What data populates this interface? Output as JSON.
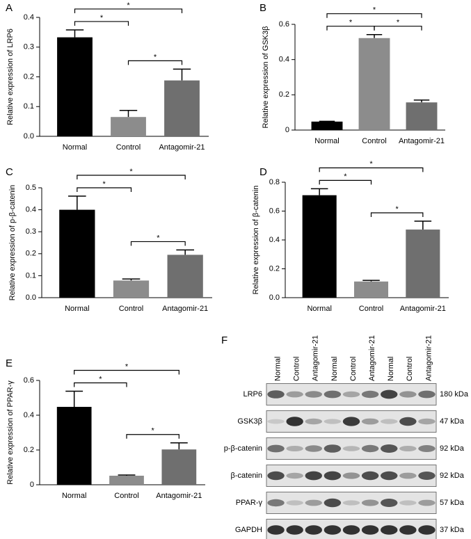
{
  "chart_data": [
    {
      "type": "bar",
      "letter": "A",
      "ylabel": "Relative expression of LRP6",
      "categories": [
        "Normal",
        "Control",
        "Antagomir-21"
      ],
      "values": [
        0.333,
        0.065,
        0.188
      ],
      "errors": [
        0.025,
        0.022,
        0.038
      ],
      "colors": [
        "#000000",
        "#8c8c8c",
        "#6f6f6f"
      ],
      "ylim": [
        0,
        0.4
      ],
      "yticks": [
        {
          "value": 0,
          "label": "0.0"
        },
        0.1,
        0.2,
        0.3,
        0.4
      ],
      "comparisons": [
        {
          "groups": [
            "Normal",
            "Control"
          ],
          "label": "*"
        },
        {
          "groups": [
            "Control",
            "Antagomir-21"
          ],
          "label": "*"
        },
        {
          "groups": [
            "Normal",
            "Antagomir-21"
          ],
          "label": "*"
        }
      ]
    },
    {
      "type": "bar",
      "letter": "B",
      "ylabel": "Relative expression of GSK3β",
      "categories": [
        "Normal",
        "Control",
        "Antagomir-21"
      ],
      "values": [
        0.048,
        0.522,
        0.157
      ],
      "errors": [
        0.002,
        0.02,
        0.013
      ],
      "colors": [
        "#000000",
        "#8c8c8c",
        "#6f6f6f"
      ],
      "ylim": [
        0,
        0.6
      ],
      "yticks": [
        0,
        0.2,
        0.4,
        0.6
      ],
      "comparisons": [
        {
          "groups": [
            "Normal",
            "Control"
          ],
          "label": "*"
        },
        {
          "groups": [
            "Control",
            "Antagomir-21"
          ],
          "label": "*"
        },
        {
          "groups": [
            "Normal",
            "Antagomir-21"
          ],
          "label": "*"
        }
      ]
    },
    {
      "type": "bar",
      "letter": "C",
      "ylabel": "Relative expression of p-β-catenin",
      "categories": [
        "Normal",
        "Control",
        "Antagomir-21"
      ],
      "values": [
        0.4,
        0.078,
        0.195
      ],
      "errors": [
        0.062,
        0.007,
        0.022
      ],
      "colors": [
        "#000000",
        "#8c8c8c",
        "#6f6f6f"
      ],
      "ylim": [
        0,
        0.5
      ],
      "yticks": [
        {
          "value": 0,
          "label": "0.0"
        },
        0.1,
        0.2,
        0.3,
        0.4,
        0.5
      ],
      "comparisons": [
        {
          "groups": [
            "Normal",
            "Control"
          ],
          "label": "*"
        },
        {
          "groups": [
            "Control",
            "Antagomir-21"
          ],
          "label": "*"
        },
        {
          "groups": [
            "Normal",
            "Antagomir-21"
          ],
          "label": "*"
        }
      ]
    },
    {
      "type": "bar",
      "letter": "D",
      "ylabel": "Relative expression of β-catenin",
      "categories": [
        "Normal",
        "Control",
        "Antagomir-21"
      ],
      "values": [
        0.71,
        0.112,
        0.472
      ],
      "errors": [
        0.045,
        0.008,
        0.058
      ],
      "colors": [
        "#000000",
        "#8c8c8c",
        "#6f6f6f"
      ],
      "ylim": [
        0,
        0.8
      ],
      "yticks": [
        {
          "value": 0,
          "label": "0.0"
        },
        0.2,
        0.4,
        0.6,
        0.8
      ],
      "comparisons": [
        {
          "groups": [
            "Normal",
            "Control"
          ],
          "label": "*"
        },
        {
          "groups": [
            "Control",
            "Antagomir-21"
          ],
          "label": "*"
        },
        {
          "groups": [
            "Normal",
            "Antagomir-21"
          ],
          "label": "*"
        }
      ]
    },
    {
      "type": "bar",
      "letter": "E",
      "ylabel": "Relative expression of PPAR-γ",
      "categories": [
        "Normal",
        "Control",
        "Antagomir-21"
      ],
      "values": [
        0.448,
        0.052,
        0.203
      ],
      "errors": [
        0.09,
        0.004,
        0.038
      ],
      "colors": [
        "#000000",
        "#8c8c8c",
        "#6f6f6f"
      ],
      "ylim": [
        0,
        0.6
      ],
      "yticks": [
        0,
        0.2,
        0.4,
        0.6
      ],
      "comparisons": [
        {
          "groups": [
            "Normal",
            "Control"
          ],
          "label": "*"
        },
        {
          "groups": [
            "Control",
            "Antagomir-21"
          ],
          "label": "*"
        },
        {
          "groups": [
            "Normal",
            "Antagomir-21"
          ],
          "label": "*"
        }
      ]
    }
  ],
  "blot": {
    "letter": "F",
    "lanes": [
      "Normal",
      "Control",
      "Antagomir-21",
      "Normal",
      "Control",
      "Antagomir-21",
      "Normal",
      "Control",
      "Antagomir-21"
    ],
    "rows": [
      {
        "label": "LRP6",
        "size": "180 kDa"
      },
      {
        "label": "GSK3β",
        "size": "47 kDa"
      },
      {
        "label": "p-β-catenin",
        "size": "92 kDa"
      },
      {
        "label": "β-catenin",
        "size": "92 kDa"
      },
      {
        "label": "PPAR-γ",
        "size": "57 kDa"
      },
      {
        "label": "GAPDH",
        "size": "37 kDa"
      }
    ]
  }
}
